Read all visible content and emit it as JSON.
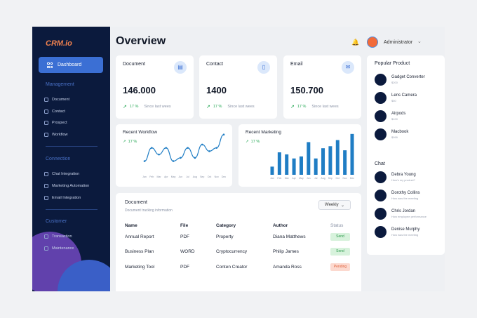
{
  "sidebar": {
    "logo": "CRM.io",
    "dashboard_label": "Dashboard",
    "management_title": "Management",
    "management_items": [
      {
        "label": "Document",
        "icon": "document-icon"
      },
      {
        "label": "Contact",
        "icon": "contact-icon"
      },
      {
        "label": "Prospect",
        "icon": "prospect-icon"
      },
      {
        "label": "Workflow",
        "icon": "workflow-icon"
      }
    ],
    "connection_title": "Connection",
    "connection_items": [
      {
        "label": "Chat Integration",
        "icon": "chat-icon"
      },
      {
        "label": "Marketing Automation",
        "icon": "automation-icon"
      },
      {
        "label": "Email Integration",
        "icon": "email-icon"
      }
    ],
    "customer_title": "Customer",
    "customer_items": [
      {
        "label": "Transaction",
        "icon": "transaction-icon"
      },
      {
        "label": "Maintenance",
        "icon": "maintenance-icon"
      }
    ]
  },
  "header": {
    "title": "Overview",
    "user_name": "Administrator"
  },
  "stats": [
    {
      "label": "Document",
      "value": "146.000",
      "change": "17 %",
      "since": "Since last wees",
      "icon": "document-icon"
    },
    {
      "label": "Contact",
      "value": "1400",
      "change": "17 %",
      "since": "Since last wees",
      "icon": "contact-icon"
    },
    {
      "label": "Email",
      "value": "150.700",
      "change": "17 %",
      "since": "Since last wees",
      "icon": "email-icon"
    }
  ],
  "workflow_chart": {
    "title": "Recent Workflow",
    "change": "17 %",
    "chart_data": {
      "type": "line",
      "categories": [
        "Jan",
        "Feb",
        "Mar",
        "Apr",
        "May",
        "Jun",
        "Jul",
        "Aug",
        "Sep",
        "Oct",
        "Nov",
        "Dec"
      ],
      "values": [
        2,
        6,
        4,
        6,
        2,
        3,
        6,
        3,
        7,
        5,
        6,
        10
      ],
      "ylim": [
        0,
        11
      ]
    }
  },
  "marketing_chart": {
    "title": "Recent Marketing",
    "change": "17 %",
    "chart_data": {
      "type": "bar",
      "categories": [
        "Jan",
        "Feb",
        "Mar",
        "Apr",
        "May",
        "Jun",
        "Jul",
        "Aug",
        "Sep",
        "Oct",
        "Nov",
        "Dec"
      ],
      "values": [
        2,
        5.5,
        5,
        4,
        4.5,
        8,
        4,
        6.5,
        7,
        8.5,
        6,
        10
      ],
      "ylim": [
        0,
        11
      ]
    }
  },
  "table": {
    "title": "Document",
    "subtitle": "Document tracking information",
    "filter": "Weekly",
    "headers": {
      "name": "Name",
      "file": "File",
      "category": "Category",
      "author": "Author",
      "status": "Status"
    },
    "rows": [
      {
        "name": "Annual Report",
        "file": "PDF",
        "category": "Property",
        "author": "Diana Matthews",
        "status": "Send"
      },
      {
        "name": "Business Plan",
        "file": "WORD",
        "category": "Cryptocurrency",
        "author": "Philip James",
        "status": "Send"
      },
      {
        "name": "Marketing Tool",
        "file": "PDF",
        "category": "Conten Creator",
        "author": "Amanda Ross",
        "status": "Pending"
      }
    ]
  },
  "popular": {
    "title": "Popular Product",
    "items": [
      {
        "name": "Gadget Converter",
        "price": "$200"
      },
      {
        "name": "Lens Camera",
        "price": "$50"
      },
      {
        "name": "Airpods",
        "price": "$100"
      },
      {
        "name": "Macbook",
        "price": "$999"
      }
    ]
  },
  "chat": {
    "title": "Chat",
    "items": [
      {
        "name": "Debra Young",
        "message": "How's my product?"
      },
      {
        "name": "Dorothy Collins",
        "message": "How was the meeting"
      },
      {
        "name": "Chris Jordan",
        "message": "How employee performance"
      },
      {
        "name": "Denise Murphy",
        "message": "How was the meeting"
      }
    ]
  },
  "colors": {
    "accent": "#3b6fd4",
    "sidebar": "#0b1a3d",
    "positive": "#22a652",
    "logo": "#f0814e",
    "bar": "#1f7dc4"
  }
}
